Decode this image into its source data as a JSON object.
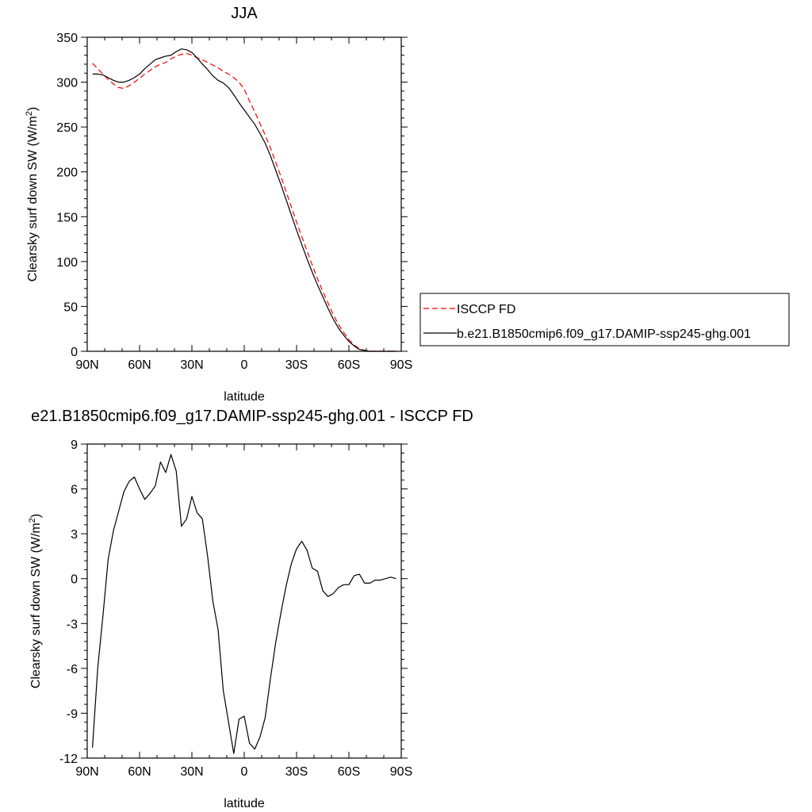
{
  "chart_data": [
    {
      "type": "line",
      "title": "JJA",
      "xlabel": "latitude",
      "ylabel": "Clearsky surf down SW (W/m",
      "ylabel_sup": "2",
      "ylabel_close": ")",
      "xlim": [
        90,
        -90
      ],
      "ylim": [
        0,
        350
      ],
      "x_ticks": [
        90,
        60,
        30,
        0,
        -30,
        -60,
        -90
      ],
      "x_tick_labels": [
        "90N",
        "60N",
        "30N",
        "0",
        "30S",
        "60S",
        "90S"
      ],
      "y_ticks": [
        0,
        50,
        100,
        150,
        200,
        250,
        300,
        350
      ],
      "y_tick_labels": [
        "0",
        "50",
        "100",
        "150",
        "200",
        "250",
        "300",
        "350"
      ],
      "grid": false,
      "legend": "right",
      "series": [
        {
          "name": "ISCCP FD",
          "color": "#ff0000",
          "style": "dashed",
          "x": [
            87,
            84,
            81,
            78,
            75,
            72,
            69,
            66,
            63,
            60,
            57,
            54,
            51,
            48,
            45,
            42,
            39,
            36,
            33,
            30,
            27,
            24,
            21,
            18,
            15,
            12,
            9,
            6,
            3,
            0,
            -3,
            -6,
            -9,
            -12,
            -15,
            -18,
            -21,
            -24,
            -27,
            -30,
            -33,
            -36,
            -39,
            -42,
            -45,
            -48,
            -51,
            -54,
            -57,
            -60,
            -63,
            -66,
            -69,
            -72,
            -75,
            -78,
            -81,
            -84,
            -87
          ],
          "y": [
            321,
            315,
            309,
            303,
            298,
            294,
            293,
            296,
            300,
            304,
            309,
            313,
            317,
            320,
            322,
            326,
            329,
            331,
            332,
            330,
            327,
            325,
            322,
            319,
            316,
            312,
            309,
            305,
            300,
            292,
            279,
            267,
            254,
            241,
            227,
            211,
            195,
            178,
            161,
            144,
            128,
            112,
            96,
            81,
            67,
            54,
            41,
            30,
            21,
            13,
            7,
            3,
            1,
            0,
            0,
            0,
            0,
            0,
            0
          ]
        },
        {
          "name": "b.e21.B1850cmip6.f09_g17.DAMIP-ssp245-ghg.001",
          "color": "#000000",
          "style": "solid",
          "x": [
            87,
            84,
            81,
            78,
            75,
            72,
            69,
            66,
            63,
            60,
            57,
            54,
            51,
            48,
            45,
            42,
            39,
            36,
            33,
            30,
            27,
            24,
            21,
            18,
            15,
            12,
            9,
            6,
            3,
            0,
            -3,
            -6,
            -9,
            -12,
            -15,
            -18,
            -21,
            -24,
            -27,
            -30,
            -33,
            -36,
            -39,
            -42,
            -45,
            -48,
            -51,
            -54,
            -57,
            -60,
            -63,
            -66,
            -69,
            -72,
            -75,
            -78,
            -81,
            -84,
            -87
          ],
          "y": [
            309,
            309,
            308,
            305,
            302,
            300,
            300,
            302,
            305,
            309,
            315,
            320,
            325,
            327,
            329,
            330,
            334,
            337,
            336,
            333,
            327,
            320,
            314,
            307,
            302,
            299,
            294,
            286,
            277,
            269,
            261,
            253,
            243,
            232,
            218,
            202,
            186,
            169,
            152,
            135,
            119,
            103,
            88,
            74,
            61,
            48,
            36,
            26,
            18,
            11,
            6,
            2,
            1,
            0,
            0,
            0,
            0,
            0,
            0
          ]
        }
      ]
    },
    {
      "type": "line",
      "title": "e21.B1850cmip6.f09_g17.DAMIP-ssp245-ghg.001 - ISCCP FD",
      "xlabel": "latitude",
      "ylabel": "Clearsky surf down SW (W/m",
      "ylabel_sup": "2",
      "ylabel_close": ")",
      "xlim": [
        90,
        -90
      ],
      "ylim": [
        -12,
        9
      ],
      "x_ticks": [
        90,
        60,
        30,
        0,
        -30,
        -60,
        -90
      ],
      "x_tick_labels": [
        "90N",
        "60N",
        "30N",
        "0",
        "30S",
        "60S",
        "90S"
      ],
      "y_ticks": [
        -12,
        -9,
        -6,
        -3,
        0,
        3,
        6,
        9
      ],
      "y_tick_labels": [
        "-12",
        "-9",
        "-6",
        "-3",
        "0",
        "3",
        "6",
        "9"
      ],
      "grid": false,
      "series": [
        {
          "color": "#000000",
          "style": "solid",
          "x": [
            87,
            84,
            81,
            78,
            75,
            72,
            69,
            66,
            63,
            60,
            57,
            54,
            51,
            48,
            45,
            42,
            39,
            36,
            33,
            30,
            27,
            24,
            21,
            18,
            15,
            12,
            9,
            6,
            3,
            0,
            -3,
            -6,
            -9,
            -12,
            -15,
            -18,
            -21,
            -24,
            -27,
            -30,
            -33,
            -36,
            -39,
            -42,
            -45,
            -48,
            -51,
            -54,
            -57,
            -60,
            -63,
            -66,
            -69,
            -72,
            -75,
            -78,
            -81,
            -84,
            -87
          ],
          "y": [
            -11.3,
            -6.0,
            -2.5,
            1.3,
            3.2,
            4.5,
            5.8,
            6.5,
            6.8,
            6.0,
            5.3,
            5.7,
            6.2,
            7.8,
            7.1,
            8.3,
            7.2,
            3.5,
            4.0,
            5.5,
            4.4,
            4.0,
            1.5,
            -1.5,
            -3.4,
            -7.5,
            -9.6,
            -11.7,
            -9.4,
            -9.2,
            -11.0,
            -11.4,
            -10.6,
            -9.3,
            -6.7,
            -4.3,
            -2.3,
            -0.5,
            1.0,
            2.0,
            2.5,
            1.9,
            0.7,
            0.5,
            -0.8,
            -1.2,
            -1.0,
            -0.6,
            -0.4,
            -0.4,
            0.2,
            0.3,
            -0.3,
            -0.3,
            -0.1,
            -0.1,
            0.0,
            0.1,
            0.0
          ]
        }
      ]
    }
  ]
}
